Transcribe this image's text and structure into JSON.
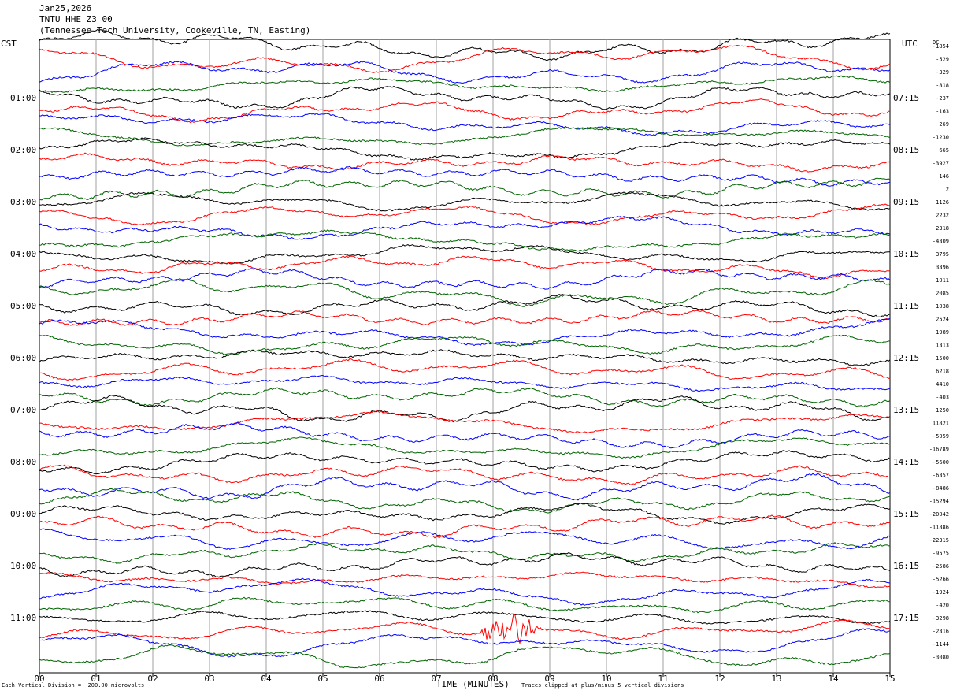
{
  "header": {
    "date": "Jan25,2026",
    "station": "TNTU HHE Z3 00",
    "location": "(Tennessee Tech University, Cookeville, TN, Easting)"
  },
  "left_axis_title": "CST",
  "right_axis_title": "UTC",
  "dc_title": "DC",
  "x_axis_title": "TIME (MINUTES)",
  "footer": {
    "left": "Each Vertical Division =  200.00 microvolts",
    "right": "Traces clipped at plus/minus 5 vertical divisions"
  },
  "colors": {
    "black": "#000000",
    "red": "#ff0000",
    "blue": "#0000ff",
    "green": "#006400",
    "grid": "#a0a0a0"
  },
  "chart_data": {
    "type": "line",
    "title": "TNTU HHE Z3 00",
    "xlabel": "TIME (MINUTES)",
    "x_ticks": [
      "00",
      "01",
      "02",
      "03",
      "04",
      "05",
      "06",
      "07",
      "08",
      "09",
      "10",
      "11",
      "12",
      "13",
      "14",
      "15"
    ],
    "xlim": [
      0,
      15
    ],
    "color_cycle": [
      "black",
      "red",
      "blue",
      "green"
    ],
    "left_hour_labels": [
      "01:00",
      "02:00",
      "03:00",
      "04:00",
      "05:00",
      "06:00",
      "07:00",
      "08:00",
      "09:00",
      "10:00",
      "11:00"
    ],
    "right_hour_labels": [
      "07:15",
      "08:15",
      "09:15",
      "10:15",
      "11:15",
      "12:15",
      "13:15",
      "14:15",
      "15:15",
      "16:15",
      "17:15"
    ],
    "dc_offsets": [
      "-1854",
      "-529",
      "-329",
      "-818",
      "-237",
      "-163",
      "269",
      "-1230",
      "665",
      "-3927",
      "146",
      "2",
      "1126",
      "2232",
      "2318",
      "-4309",
      "3795",
      "3396",
      "1011",
      "2085",
      "1038",
      "2524",
      "1989",
      "1313",
      "1500",
      "6218",
      "4410",
      "-403",
      "1250",
      "11821",
      "-5059",
      "-16789",
      "-5600",
      "-6357",
      "-8486",
      "-15294",
      "-20042",
      "-11886",
      "-22315",
      "-9575",
      "-2586",
      "-5266",
      "-1924",
      "-420",
      "-3298",
      "-2316",
      "-1144",
      "-3080"
    ],
    "event": {
      "trace_index": 45,
      "start_minute": 7.7,
      "end_minute": 8.9,
      "color": "red"
    }
  }
}
